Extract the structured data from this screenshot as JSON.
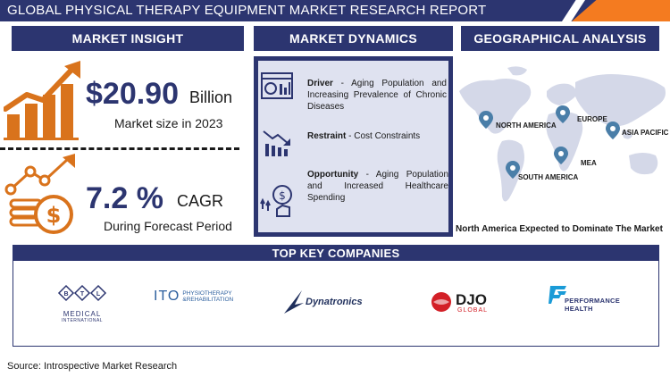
{
  "header": {
    "title": "GLOBAL PHYSICAL THERAPY EQUIPMENT MARKET RESEARCH REPORT"
  },
  "sections": {
    "insight": "MARKET INSIGHT",
    "dynamics": "MARKET DYNAMICS",
    "geo": "GEOGRAPHICAL ANALYSIS",
    "companies": "TOP KEY COMPANIES"
  },
  "insight": {
    "market_size_value": "$20.90",
    "market_size_unit": "Billion",
    "market_size_caption": "Market size in 2023",
    "cagr_value": "7.2 %",
    "cagr_unit": "CAGR",
    "cagr_caption": "During Forecast Period"
  },
  "dynamics": {
    "driver_label": "Driver",
    "driver_text": "-  Aging Population and Increasing Prevalence of Chronic Diseases",
    "restraint_label": "Restraint",
    "restraint_text": "-  Cost Constraints",
    "opportunity_label": "Opportunity",
    "opportunity_text": "- Aging Population and Increased Healthcare Spending"
  },
  "geo": {
    "regions": [
      "NORTH AMERICA",
      "EUROPE",
      "ASIA PACIFIC",
      "MEA",
      "SOUTH AMERICA"
    ],
    "caption": "North America Expected to Dominate The Market"
  },
  "companies": {
    "logos": [
      {
        "name": "BTL",
        "sub1": "MEDICAL",
        "sub2": "INTERNATIONAL"
      },
      {
        "name": "ITO",
        "sub1": "PHYSIOTHERAPY",
        "sub2": "&REHABILITATION"
      },
      {
        "name": "Dynatronics"
      },
      {
        "name": "DJO",
        "sub1": "GLOBAL"
      },
      {
        "name": "PERFORMANCE",
        "sub1": "HEALTH"
      }
    ]
  },
  "source": "Source: Introspective Market Research",
  "colors": {
    "navy": "#2c3570",
    "orange": "#d9731c",
    "panel": "#dfe2f0",
    "map": "#d4d8e8"
  }
}
